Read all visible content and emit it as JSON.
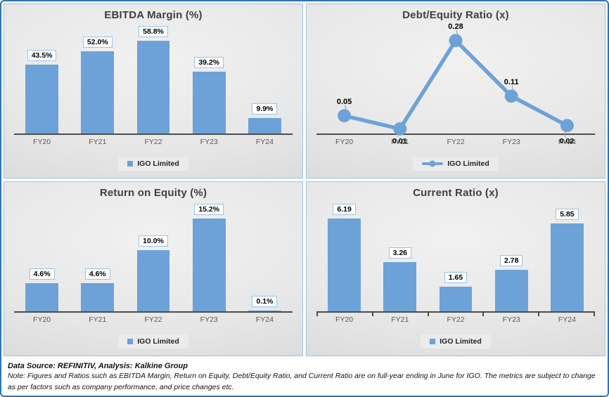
{
  "colors": {
    "series": "#6CA2D8",
    "frame_border": "#2F74B5",
    "panel_border": "#9CC2E5",
    "label_box_border": "#9CC2E5",
    "axis": "#4D4D4D",
    "leader_line": "#999999"
  },
  "chart_data": [
    {
      "type": "bar",
      "title": "EBITDA Margin (%)",
      "categories": [
        "FY20",
        "FY21",
        "FY22",
        "FY23",
        "FY24"
      ],
      "values": [
        43.5,
        52.0,
        58.8,
        39.2,
        9.9
      ],
      "value_labels": [
        "43.5%",
        "52.0%",
        "58.8%",
        "39.2%",
        "9.9%"
      ],
      "legend": "IGO Limited",
      "legend_position": "bottom",
      "xlabel": "",
      "ylabel": "",
      "ylim": [
        0,
        60
      ],
      "grid": false,
      "axis_ticks": false
    },
    {
      "type": "line",
      "title": "Debt/Equity Ratio (x)",
      "categories": [
        "FY20",
        "FY21",
        "FY22",
        "FY23",
        "FY24"
      ],
      "values": [
        0.05,
        0.01,
        0.28,
        0.11,
        0.02
      ],
      "value_labels": [
        "0.05",
        "0.01",
        "0.28",
        "0.11",
        "0.02"
      ],
      "label_side": [
        "above",
        "below_axis",
        "above",
        "above",
        "below_axis"
      ],
      "legend": "IGO Limited",
      "legend_position": "bottom",
      "xlabel": "",
      "ylabel": "",
      "ylim": [
        0,
        0.3
      ],
      "grid": false,
      "axis_ticks": false
    },
    {
      "type": "bar",
      "title": "Return on Equity (%)",
      "categories": [
        "FY20",
        "FY21",
        "FY22",
        "FY23",
        "FY24"
      ],
      "values": [
        4.6,
        4.6,
        10.0,
        15.2,
        0.1
      ],
      "value_labels": [
        "4.6%",
        "4.6%",
        "10.0%",
        "15.2%",
        "0.1%"
      ],
      "legend": "IGO Limited",
      "legend_position": "bottom",
      "xlabel": "",
      "ylabel": "",
      "ylim": [
        0,
        16
      ],
      "grid": false,
      "axis_ticks": false
    },
    {
      "type": "bar",
      "title": "Current Ratio (x)",
      "categories": [
        "FY20",
        "FY21",
        "FY22",
        "FY23",
        "FY24"
      ],
      "values": [
        6.19,
        3.26,
        1.65,
        2.78,
        5.85
      ],
      "value_labels": [
        "6.19",
        "3.26",
        "1.65",
        "2.78",
        "5.85"
      ],
      "legend": "IGO Limited",
      "legend_position": "bottom",
      "xlabel": "",
      "ylabel": "",
      "ylim": [
        0,
        6.5
      ],
      "grid": false,
      "axis_ticks": true
    }
  ],
  "footer": {
    "source": "Data Source: REFINITIV, Analysis: Kalkine Group",
    "note": "Note: Figures and Ratios such as EBITDA Margin, Return on Equity, Debt/Equity Ratio, and Current Ratio are on full-year ending in June for IGO. The metrics are subject to change as per factors such as company performance, and price changes etc."
  }
}
